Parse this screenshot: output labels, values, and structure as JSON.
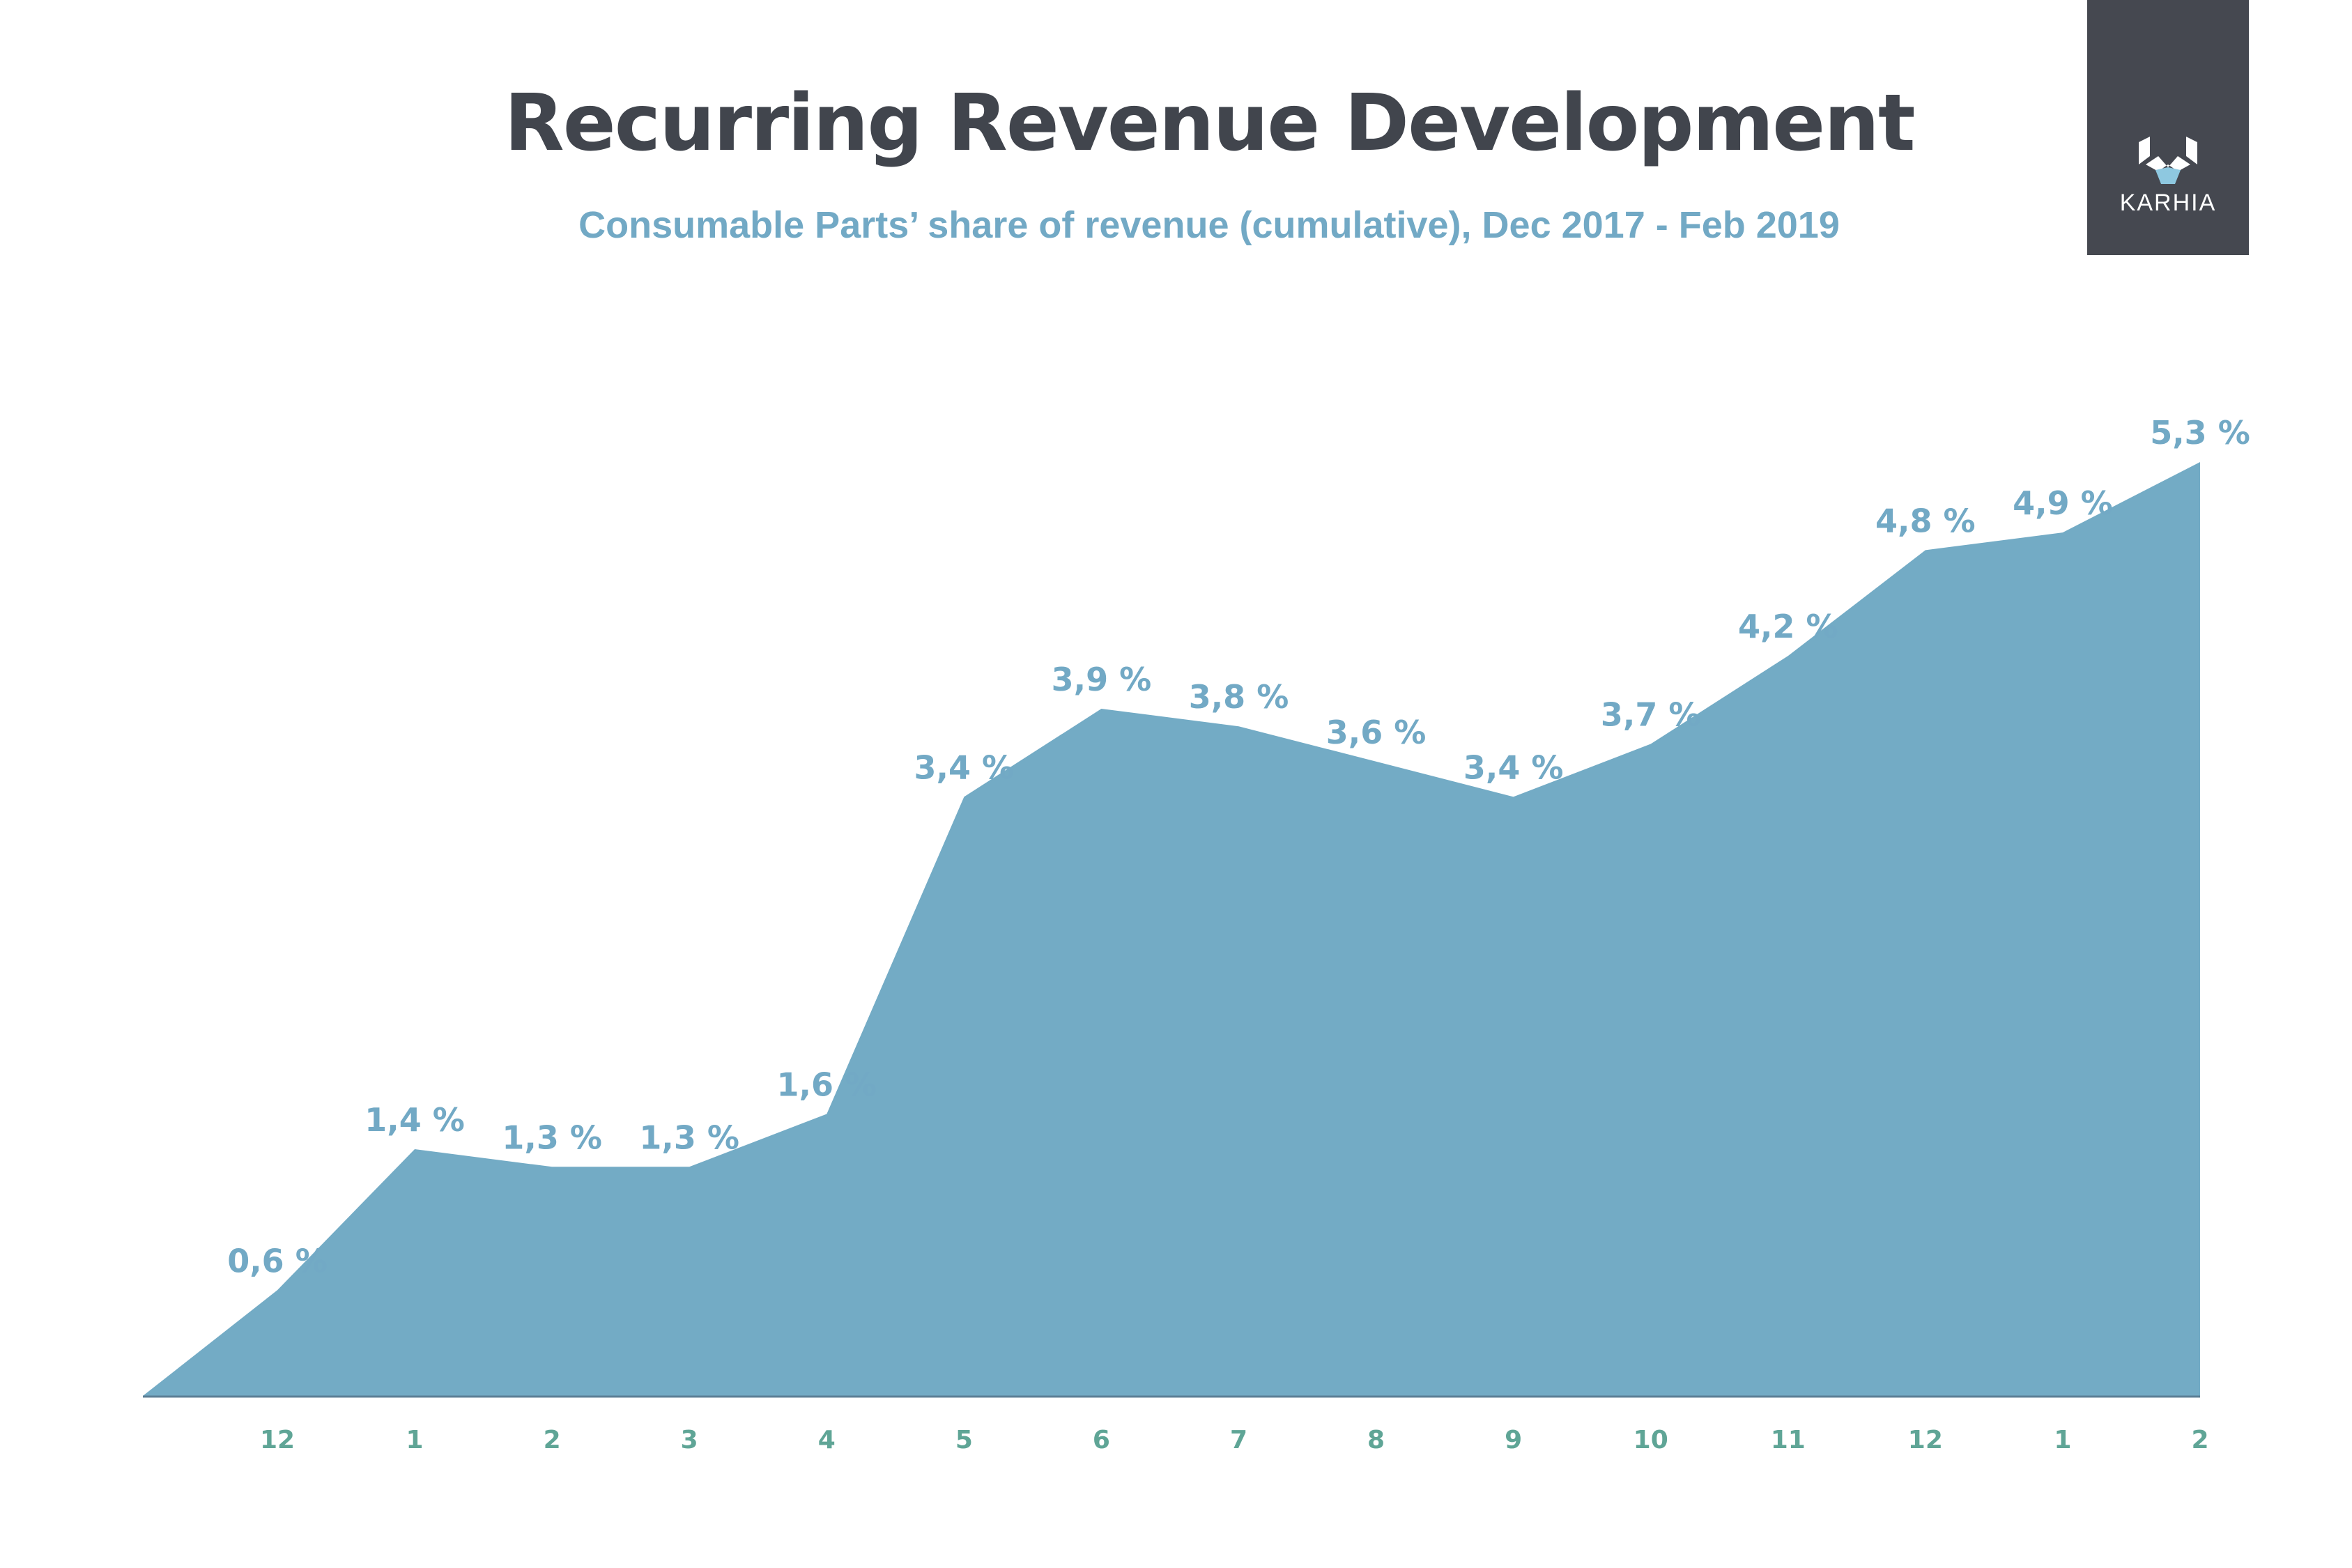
{
  "header": {
    "title": "Recurring Revenue Development",
    "subtitle": "Consumable Parts’ share of revenue (cumulative), Dec 2017 - Feb 2019"
  },
  "logo": {
    "text": "KARHIA",
    "icon": "karhia-bear-icon",
    "background": "#454850"
  },
  "colors": {
    "area": "#73abc5",
    "value_label": "#72a9c5",
    "tick_label": "#5fa596",
    "title": "#41454d"
  },
  "chart_data": {
    "type": "area",
    "title": "Recurring Revenue Development",
    "subtitle": "Consumable Parts’ share of revenue (cumulative), Dec 2017 - Feb 2019",
    "xlabel": "",
    "ylabel": "",
    "categories": [
      "12",
      "1",
      "2",
      "3",
      "4",
      "5",
      "6",
      "7",
      "8",
      "9",
      "10",
      "11",
      "12",
      "1",
      "2"
    ],
    "values": [
      0.6,
      1.4,
      1.3,
      1.3,
      1.6,
      3.4,
      3.9,
      3.8,
      3.6,
      3.4,
      3.7,
      4.2,
      4.8,
      4.9,
      5.3
    ],
    "data_labels": [
      "0,6 %",
      "1,4 %",
      "1,3 %",
      "1,3 %",
      "1,6 %",
      "3,4 %",
      "3,9 %",
      "3,8 %",
      "3,6 %",
      "3,4 %",
      "3,7 %",
      "4,2 %",
      "4,8 %",
      "4,9 %",
      "5,3 %"
    ],
    "area_starts_at_zero": true,
    "ylim": [
      0,
      5.3
    ],
    "grid": false,
    "legend": "none"
  }
}
